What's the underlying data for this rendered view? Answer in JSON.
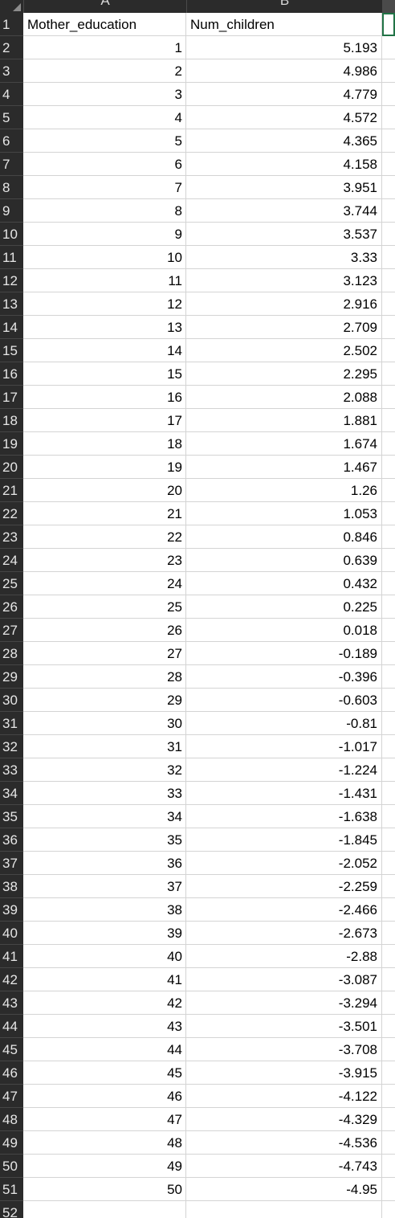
{
  "columns": [
    "A",
    "B"
  ],
  "header_row": {
    "number": "1",
    "a": "Mother_education",
    "b": "Num_children"
  },
  "rows": [
    {
      "n": "2",
      "a": "1",
      "b": "5.193"
    },
    {
      "n": "3",
      "a": "2",
      "b": "4.986"
    },
    {
      "n": "4",
      "a": "3",
      "b": "4.779"
    },
    {
      "n": "5",
      "a": "4",
      "b": "4.572"
    },
    {
      "n": "6",
      "a": "5",
      "b": "4.365"
    },
    {
      "n": "7",
      "a": "6",
      "b": "4.158"
    },
    {
      "n": "8",
      "a": "7",
      "b": "3.951"
    },
    {
      "n": "9",
      "a": "8",
      "b": "3.744"
    },
    {
      "n": "10",
      "a": "9",
      "b": "3.537"
    },
    {
      "n": "11",
      "a": "10",
      "b": "3.33"
    },
    {
      "n": "12",
      "a": "11",
      "b": "3.123"
    },
    {
      "n": "13",
      "a": "12",
      "b": "2.916"
    },
    {
      "n": "14",
      "a": "13",
      "b": "2.709"
    },
    {
      "n": "15",
      "a": "14",
      "b": "2.502"
    },
    {
      "n": "16",
      "a": "15",
      "b": "2.295"
    },
    {
      "n": "17",
      "a": "16",
      "b": "2.088"
    },
    {
      "n": "18",
      "a": "17",
      "b": "1.881"
    },
    {
      "n": "19",
      "a": "18",
      "b": "1.674"
    },
    {
      "n": "20",
      "a": "19",
      "b": "1.467"
    },
    {
      "n": "21",
      "a": "20",
      "b": "1.26"
    },
    {
      "n": "22",
      "a": "21",
      "b": "1.053"
    },
    {
      "n": "23",
      "a": "22",
      "b": "0.846"
    },
    {
      "n": "24",
      "a": "23",
      "b": "0.639"
    },
    {
      "n": "25",
      "a": "24",
      "b": "0.432"
    },
    {
      "n": "26",
      "a": "25",
      "b": "0.225"
    },
    {
      "n": "27",
      "a": "26",
      "b": "0.018"
    },
    {
      "n": "28",
      "a": "27",
      "b": "-0.189"
    },
    {
      "n": "29",
      "a": "28",
      "b": "-0.396"
    },
    {
      "n": "30",
      "a": "29",
      "b": "-0.603"
    },
    {
      "n": "31",
      "a": "30",
      "b": "-0.81"
    },
    {
      "n": "32",
      "a": "31",
      "b": "-1.017"
    },
    {
      "n": "33",
      "a": "32",
      "b": "-1.224"
    },
    {
      "n": "34",
      "a": "33",
      "b": "-1.431"
    },
    {
      "n": "35",
      "a": "34",
      "b": "-1.638"
    },
    {
      "n": "36",
      "a": "35",
      "b": "-1.845"
    },
    {
      "n": "37",
      "a": "36",
      "b": "-2.052"
    },
    {
      "n": "38",
      "a": "37",
      "b": "-2.259"
    },
    {
      "n": "39",
      "a": "38",
      "b": "-2.466"
    },
    {
      "n": "40",
      "a": "39",
      "b": "-2.673"
    },
    {
      "n": "41",
      "a": "40",
      "b": "-2.88"
    },
    {
      "n": "42",
      "a": "41",
      "b": "-3.087"
    },
    {
      "n": "43",
      "a": "42",
      "b": "-3.294"
    },
    {
      "n": "44",
      "a": "43",
      "b": "-3.501"
    },
    {
      "n": "45",
      "a": "44",
      "b": "-3.708"
    },
    {
      "n": "46",
      "a": "45",
      "b": "-3.915"
    },
    {
      "n": "47",
      "a": "46",
      "b": "-4.122"
    },
    {
      "n": "48",
      "a": "47",
      "b": "-4.329"
    },
    {
      "n": "49",
      "a": "48",
      "b": "-4.536"
    },
    {
      "n": "50",
      "a": "49",
      "b": "-4.743"
    },
    {
      "n": "51",
      "a": "50",
      "b": "-4.95"
    },
    {
      "n": "52",
      "a": "",
      "b": ""
    }
  ],
  "colors": {
    "header_bg": "#2b2b2b",
    "header_text": "#e6e6e6",
    "gridline": "#d4d4d4",
    "selection": "#217346"
  }
}
